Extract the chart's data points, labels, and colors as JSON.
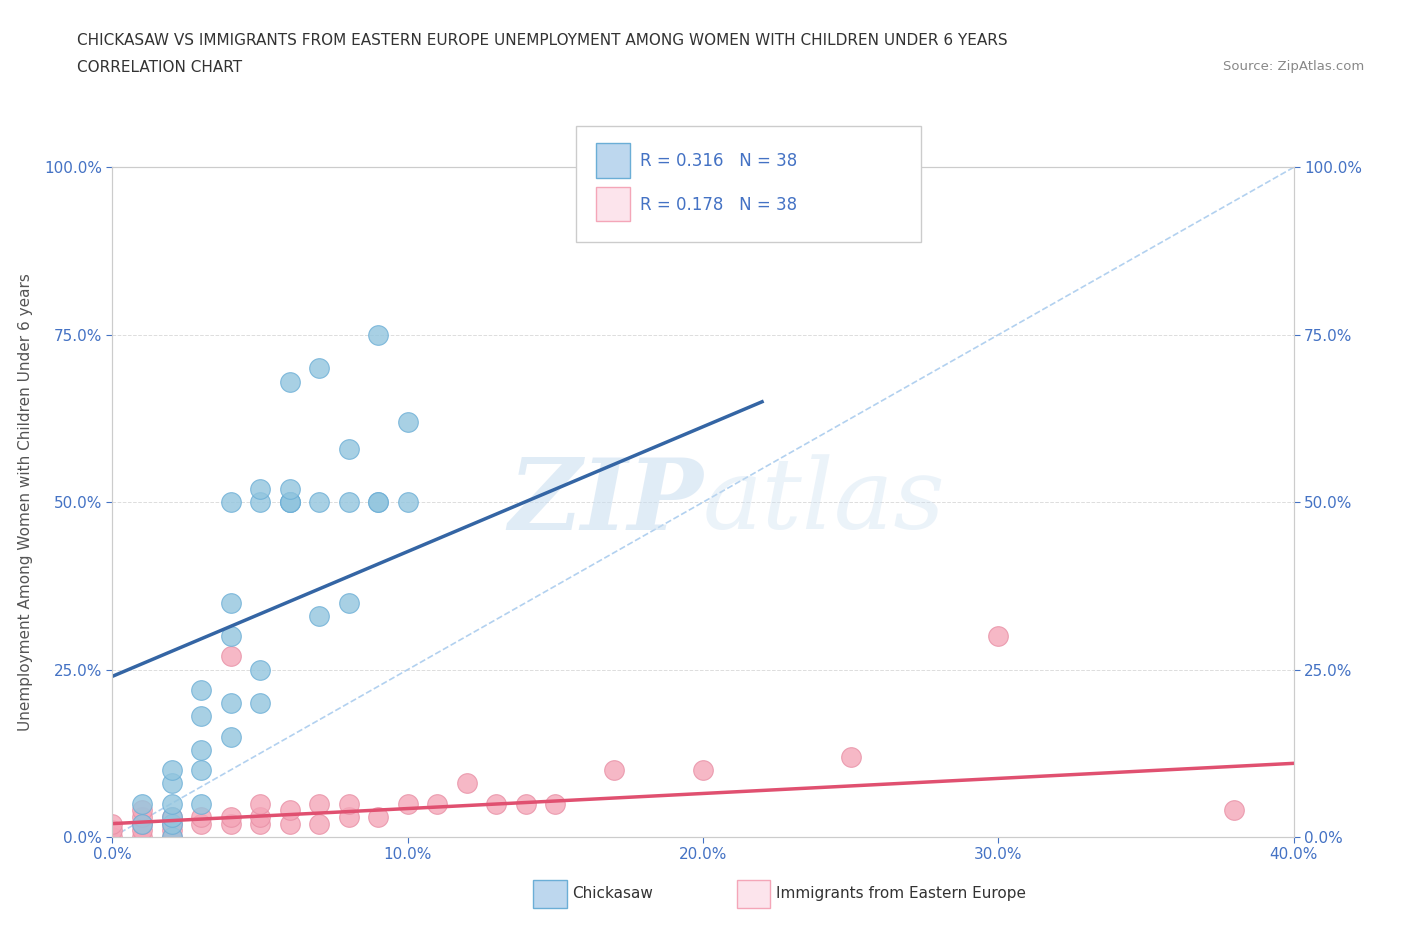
{
  "title_line1": "CHICKASAW VS IMMIGRANTS FROM EASTERN EUROPE UNEMPLOYMENT AMONG WOMEN WITH CHILDREN UNDER 6 YEARS",
  "title_line2": "CORRELATION CHART",
  "source_text": "Source: ZipAtlas.com",
  "ylabel": "Unemployment Among Women with Children Under 6 years",
  "xlim": [
    0.0,
    0.4
  ],
  "ylim": [
    0.0,
    1.0
  ],
  "xtick_labels": [
    "0.0%",
    "10.0%",
    "20.0%",
    "30.0%",
    "40.0%"
  ],
  "xtick_vals": [
    0.0,
    0.1,
    0.2,
    0.3,
    0.4
  ],
  "ytick_labels": [
    "0.0%",
    "25.0%",
    "50.0%",
    "75.0%",
    "100.0%"
  ],
  "ytick_vals": [
    0.0,
    0.25,
    0.5,
    0.75,
    1.0
  ],
  "watermark_zip": "ZIP",
  "watermark_atlas": "atlas",
  "legend_text1": "R = 0.316   N = 38",
  "legend_text2": "R = 0.178   N = 38",
  "legend_label1": "Chickasaw",
  "legend_label2": "Immigrants from Eastern Europe",
  "blue_scatter": "#92c5de",
  "pink_scatter": "#f4a6b8",
  "blue_edge": "#6baed6",
  "pink_edge": "#e88fa5",
  "blue_fill_legend": "#bdd7ee",
  "pink_fill_legend": "#fce4ec",
  "blue_edge_legend": "#6baed6",
  "pink_edge_legend": "#f4a6b8",
  "trend_blue": "#3465a4",
  "trend_pink": "#e05070",
  "diag_color": "#aaccee",
  "tick_color": "#4472c4",
  "grid_color": "#dddddd",
  "title_color": "#333333",
  "source_color": "#888888",
  "ylabel_color": "#555555",
  "chickasaw_x": [
    0.01,
    0.01,
    0.02,
    0.02,
    0.02,
    0.02,
    0.02,
    0.02,
    0.03,
    0.03,
    0.03,
    0.03,
    0.03,
    0.04,
    0.04,
    0.04,
    0.04,
    0.04,
    0.05,
    0.05,
    0.05,
    0.05,
    0.06,
    0.06,
    0.06,
    0.06,
    0.06,
    0.07,
    0.07,
    0.07,
    0.08,
    0.08,
    0.08,
    0.09,
    0.09,
    0.09,
    0.1,
    0.1
  ],
  "chickasaw_y": [
    0.02,
    0.05,
    0.0,
    0.02,
    0.03,
    0.05,
    0.08,
    0.1,
    0.05,
    0.1,
    0.13,
    0.18,
    0.22,
    0.15,
    0.2,
    0.3,
    0.35,
    0.5,
    0.2,
    0.25,
    0.5,
    0.52,
    0.5,
    0.5,
    0.5,
    0.52,
    0.68,
    0.33,
    0.5,
    0.7,
    0.35,
    0.5,
    0.58,
    0.5,
    0.5,
    0.75,
    0.5,
    0.62
  ],
  "eastern_x": [
    0.0,
    0.0,
    0.0,
    0.01,
    0.01,
    0.01,
    0.01,
    0.01,
    0.02,
    0.02,
    0.02,
    0.02,
    0.03,
    0.03,
    0.04,
    0.04,
    0.04,
    0.05,
    0.05,
    0.05,
    0.06,
    0.06,
    0.07,
    0.07,
    0.08,
    0.08,
    0.09,
    0.1,
    0.11,
    0.12,
    0.13,
    0.14,
    0.15,
    0.17,
    0.2,
    0.25,
    0.3,
    0.38
  ],
  "eastern_y": [
    0.0,
    0.01,
    0.02,
    0.0,
    0.01,
    0.02,
    0.03,
    0.04,
    0.0,
    0.01,
    0.02,
    0.03,
    0.02,
    0.03,
    0.02,
    0.03,
    0.27,
    0.02,
    0.03,
    0.05,
    0.02,
    0.04,
    0.02,
    0.05,
    0.03,
    0.05,
    0.03,
    0.05,
    0.05,
    0.08,
    0.05,
    0.05,
    0.05,
    0.1,
    0.1,
    0.12,
    0.3,
    0.04
  ],
  "blue_trend_x0": 0.0,
  "blue_trend_x1": 0.22,
  "blue_trend_y0": 0.24,
  "blue_trend_y1": 0.65,
  "pink_trend_x0": 0.0,
  "pink_trend_x1": 0.4,
  "pink_trend_y0": 0.02,
  "pink_trend_y1": 0.11
}
